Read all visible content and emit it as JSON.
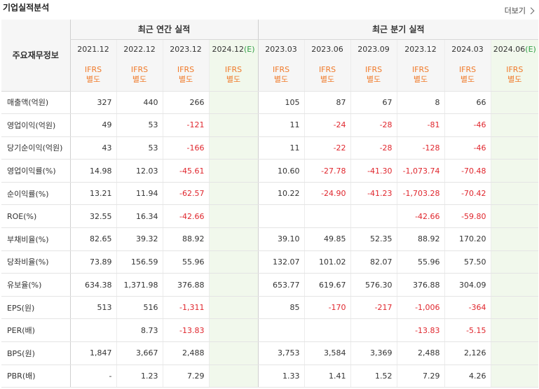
{
  "title": "기업실적분석",
  "more_label": "더보기",
  "more_icon": "chevron-right-icon",
  "table": {
    "row_header_label": "주요재무정보",
    "groups": [
      {
        "label": "최근 연간 실적",
        "span": 4
      },
      {
        "label": "최근 분기 실적",
        "span": 6
      }
    ],
    "periods": [
      {
        "label": "2021.12",
        "estimate": false
      },
      {
        "label": "2022.12",
        "estimate": false
      },
      {
        "label": "2023.12",
        "estimate": false
      },
      {
        "label": "2024.12",
        "estimate": true,
        "estimate_mark": "(E)"
      },
      {
        "label": "2023.03",
        "estimate": false
      },
      {
        "label": "2023.06",
        "estimate": false
      },
      {
        "label": "2023.09",
        "estimate": false
      },
      {
        "label": "2023.12",
        "estimate": false
      },
      {
        "label": "2024.03",
        "estimate": false
      },
      {
        "label": "2024.06",
        "estimate": true,
        "estimate_mark": "(E)"
      }
    ],
    "ifrs_line1": "IFRS",
    "ifrs_line2": "별도",
    "rows": [
      {
        "label": "매출액(억원)",
        "values": [
          "327",
          "440",
          "266",
          "",
          "105",
          "87",
          "67",
          "8",
          "66",
          ""
        ]
      },
      {
        "label": "영업이익(억원)",
        "values": [
          "49",
          "53",
          "-121",
          "",
          "11",
          "-24",
          "-28",
          "-81",
          "-46",
          ""
        ]
      },
      {
        "label": "당기순이익(억원)",
        "values": [
          "43",
          "53",
          "-166",
          "",
          "11",
          "-22",
          "-28",
          "-128",
          "-46",
          ""
        ]
      },
      {
        "label": "영업이익률(%)",
        "values": [
          "14.98",
          "12.03",
          "-45.61",
          "",
          "10.60",
          "-27.78",
          "-41.30",
          "-1,073.74",
          "-70.48",
          ""
        ]
      },
      {
        "label": "순이익률(%)",
        "values": [
          "13.21",
          "11.94",
          "-62.57",
          "",
          "10.22",
          "-24.90",
          "-41.23",
          "-1,703.28",
          "-70.42",
          ""
        ]
      },
      {
        "label": "ROE(%)",
        "values": [
          "32.55",
          "16.34",
          "-42.66",
          "",
          "",
          "",
          "",
          "-42.66",
          "-59.80",
          ""
        ]
      },
      {
        "label": "부채비율(%)",
        "values": [
          "82.65",
          "39.32",
          "88.92",
          "",
          "39.10",
          "49.85",
          "52.35",
          "88.92",
          "170.20",
          ""
        ]
      },
      {
        "label": "당좌비율(%)",
        "values": [
          "73.89",
          "156.59",
          "55.96",
          "",
          "132.07",
          "101.02",
          "82.07",
          "55.96",
          "57.50",
          ""
        ]
      },
      {
        "label": "유보율(%)",
        "values": [
          "634.38",
          "1,371.98",
          "376.88",
          "",
          "653.77",
          "619.67",
          "576.30",
          "376.88",
          "304.09",
          ""
        ]
      },
      {
        "label": "EPS(원)",
        "values": [
          "513",
          "516",
          "-1,311",
          "",
          "85",
          "-170",
          "-217",
          "-1,006",
          "-364",
          ""
        ]
      },
      {
        "label": "PER(배)",
        "values": [
          "",
          "8.73",
          "-13.83",
          "",
          "",
          "",
          "",
          "-13.83",
          "-5.15",
          ""
        ]
      },
      {
        "label": "BPS(원)",
        "values": [
          "1,847",
          "3,667",
          "2,488",
          "",
          "3,753",
          "3,584",
          "3,369",
          "2,488",
          "2,126",
          ""
        ]
      },
      {
        "label": "PBR(배)",
        "values": [
          "-",
          "1.23",
          "7.29",
          "",
          "1.33",
          "1.41",
          "1.52",
          "7.29",
          "4.26",
          ""
        ]
      }
    ],
    "group_start_rows": [
      6,
      9
    ],
    "colors": {
      "negative": "#e0262d",
      "ifrs": "#f07a2a",
      "estimate_bg": "#f1f8ec",
      "estimate_mark": "#2f9e44"
    }
  }
}
